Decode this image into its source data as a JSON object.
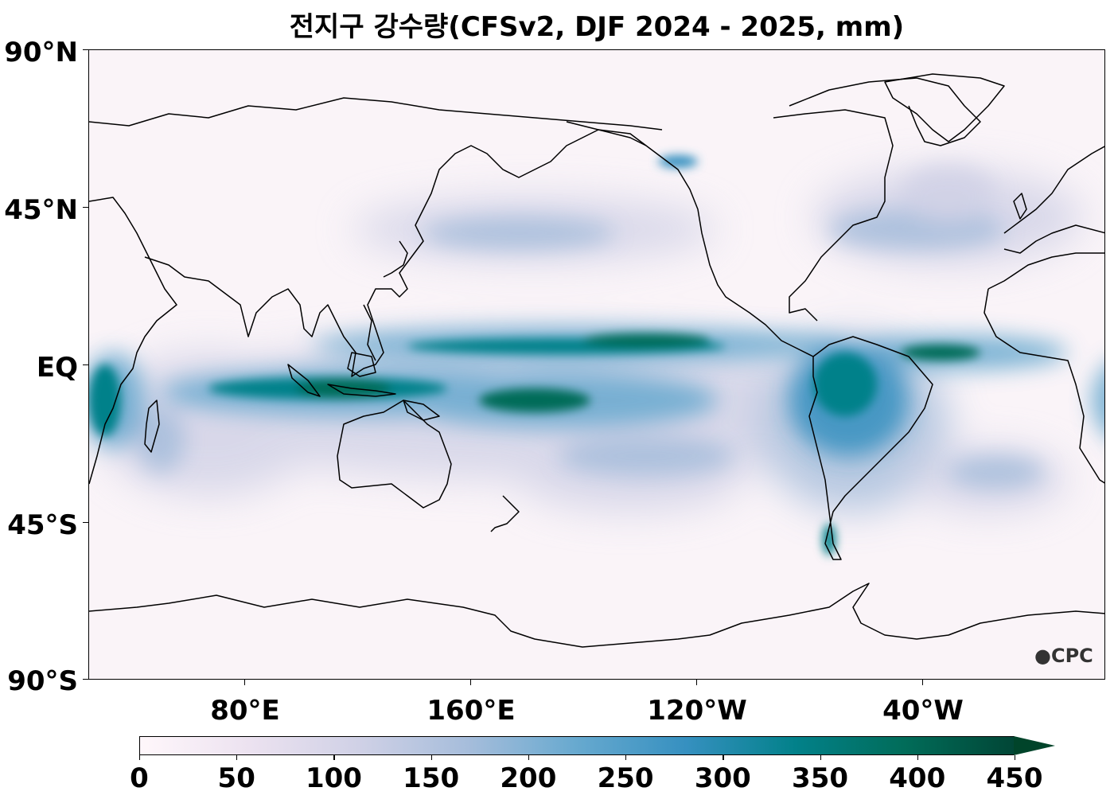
{
  "title": "전지구 강수량(CFSv2, DJF 2024 - 2025, mm)",
  "latitude_labels": [
    "90°N",
    "45°N",
    "EQ",
    "45°S",
    "90°S"
  ],
  "longitude_labels": [
    "80°E",
    "160°E",
    "120°W",
    "40°W"
  ],
  "colorbar": {
    "ticks": [
      "0",
      "50",
      "100",
      "150",
      "200",
      "250",
      "300",
      "350",
      "400",
      "450"
    ],
    "extend": "max",
    "colors": [
      "#fff7fb",
      "#ece2f0",
      "#d0d1e6",
      "#a6bddb",
      "#67a9cf",
      "#3690c0",
      "#02818a",
      "#016c59",
      "#014636"
    ]
  },
  "logo": "CPC"
}
